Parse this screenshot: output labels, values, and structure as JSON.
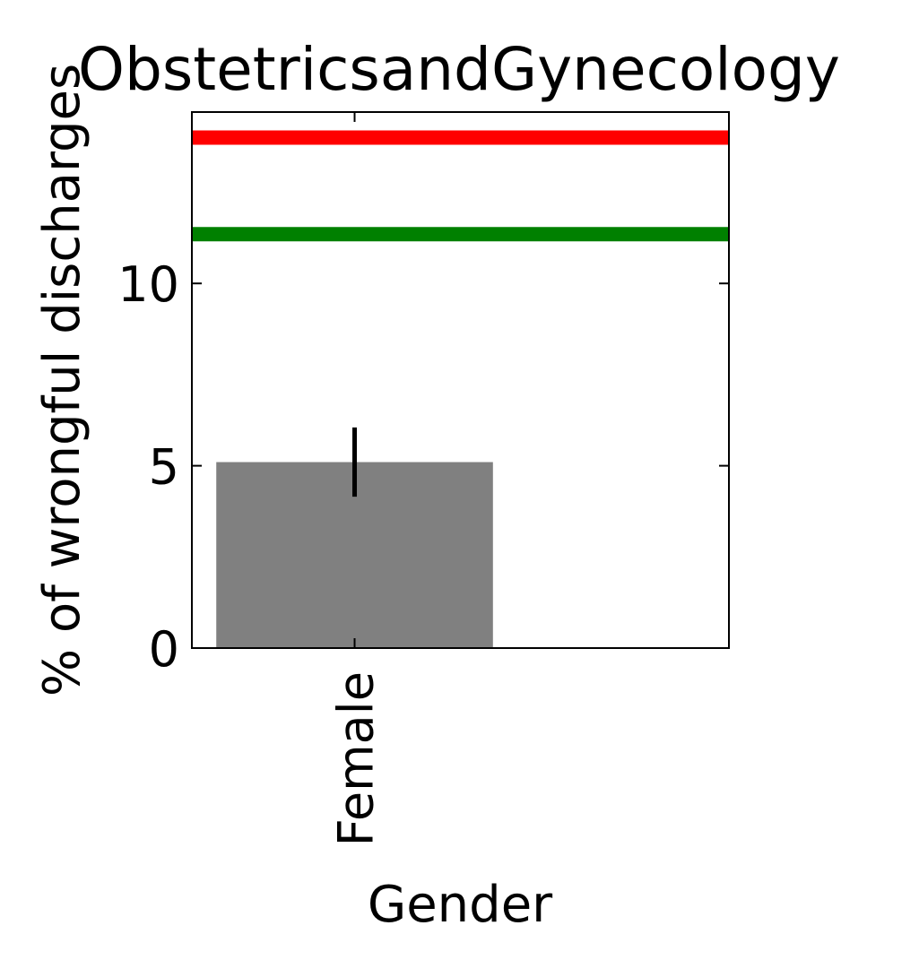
{
  "chart_data": {
    "type": "bar",
    "title": "ObstetricsandGynecology",
    "xlabel": "Gender",
    "ylabel": "% of wrongful discharges",
    "categories": [
      "Female"
    ],
    "values": [
      5.1
    ],
    "error": [
      {
        "low": 4.15,
        "high": 6.05
      }
    ],
    "ylim": [
      0,
      14.7
    ],
    "xlim": [
      -0.5,
      1.15
    ],
    "yticks": [
      0,
      5,
      10
    ],
    "reference_lines": [
      {
        "value": 14.0,
        "color": "#ff0000"
      },
      {
        "value": 11.35,
        "color": "#008000"
      }
    ],
    "bar_color": "#808080",
    "error_color": "#000000",
    "grid": false,
    "legend": "none"
  }
}
